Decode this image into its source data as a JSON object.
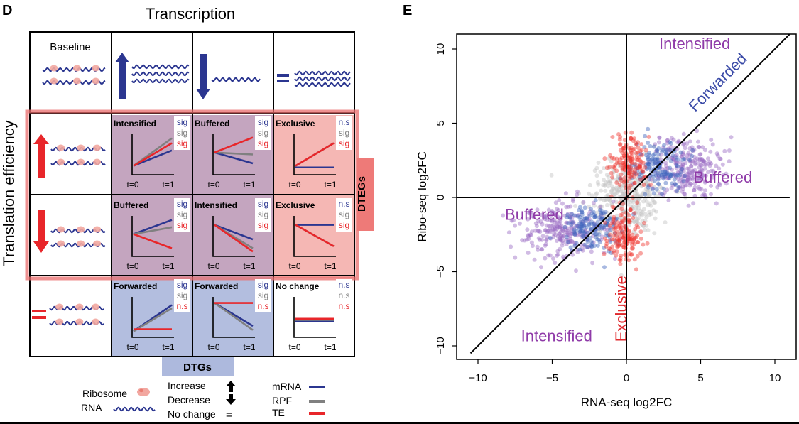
{
  "panel_d": {
    "label": "D",
    "top_title": "Transcription",
    "side_title": "Translation efficiency",
    "baseline_label": "Baseline",
    "dtegs_label": "DTEGs",
    "dtgs_label": "DTGs",
    "t0": "t=0",
    "t1": "t=1",
    "cells": [
      {
        "title": "Intensified",
        "sig": [
          "sig",
          "sig",
          "sig"
        ],
        "lines": {
          "mrna": [
            0.22,
            0.6
          ],
          "rpf": [
            0.22,
            0.9
          ],
          "te": [
            0.22,
            0.78
          ]
        }
      },
      {
        "title": "Buffered",
        "sig": [
          "sig",
          "sig",
          "sig"
        ],
        "lines": {
          "mrna": [
            0.55,
            0.28
          ],
          "rpf": [
            0.55,
            0.5
          ],
          "te": [
            0.55,
            0.92
          ]
        }
      },
      {
        "title": "Exclusive",
        "sig": [
          "n.s",
          "sig",
          "sig"
        ],
        "lines": {
          "mrna": [
            0.18,
            0.18
          ],
          "rpf": [
            0.22,
            0.78
          ],
          "te": [
            0.22,
            0.78
          ]
        }
      },
      {
        "title": "Buffered",
        "sig": [
          "sig",
          "sig",
          "sig"
        ],
        "lines": {
          "mrna": [
            0.55,
            0.9
          ],
          "rpf": [
            0.55,
            0.72
          ],
          "te": [
            0.55,
            0.2
          ]
        }
      },
      {
        "title": "Intensified",
        "sig": [
          "sig",
          "sig",
          "sig"
        ],
        "lines": {
          "mrna": [
            0.78,
            0.42
          ],
          "rpf": [
            0.78,
            0.2
          ],
          "te": [
            0.78,
            0.12
          ]
        }
      },
      {
        "title": "Exclusive",
        "sig": [
          "n.s",
          "sig",
          "sig"
        ],
        "lines": {
          "mrna": [
            0.78,
            0.78
          ],
          "rpf": [
            0.78,
            0.25
          ],
          "te": [
            0.78,
            0.25
          ]
        }
      },
      {
        "title": "Forwarded",
        "sig": [
          "sig",
          "sig",
          "n.s"
        ],
        "lines": {
          "mrna": [
            0.15,
            0.8
          ],
          "rpf": [
            0.15,
            0.72
          ],
          "te": [
            0.2,
            0.2
          ]
        }
      },
      {
        "title": "Forwarded",
        "sig": [
          "sig",
          "sig",
          "n.s"
        ],
        "lines": {
          "mrna": [
            0.85,
            0.28
          ],
          "rpf": [
            0.85,
            0.18
          ],
          "te": [
            0.85,
            0.85
          ]
        }
      },
      {
        "title": "No change",
        "sig": [
          "n.s",
          "n.s",
          "n.s"
        ],
        "lines": {
          "mrna": [
            0.4,
            0.4
          ],
          "rpf": [
            0.43,
            0.43
          ],
          "te": [
            0.46,
            0.46
          ]
        }
      }
    ],
    "legend": {
      "ribosome": "Ribosome",
      "rna": "RNA",
      "increase": "Increase",
      "decrease": "Decrease",
      "no_change": "No change",
      "equals": "=",
      "mrna": "mRNA",
      "rpf": "RPF",
      "te": "TE"
    }
  },
  "colors": {
    "mrna": "#2b3690",
    "rpf": "#808080",
    "te": "#e8262a",
    "purple_cell": "#c4a5bf",
    "red_cell": "#f5b7b4",
    "blue_cell": "#b3bedf",
    "dteg_frame": "#e96c6c",
    "dteg_box": "#ee7a78",
    "dtg_box": "#adb9dd",
    "ribosome": "#f2a7a0",
    "label_purple": "#8f3aa8",
    "label_blue": "#3a4aa7",
    "label_red": "#e02a2e",
    "gray_points": "#c0c0c0",
    "purple_points": "#9a6ac4",
    "blue_points": "#3f63bd",
    "red_points": "#f0352f"
  },
  "panel_e": {
    "label": "E",
    "chart_data": {
      "type": "scatter",
      "xlabel": "RNA-seq log2FC",
      "ylabel": "Ribo-seq log2FC",
      "xlim": [
        -12,
        11
      ],
      "ylim": [
        -11,
        11
      ],
      "xticks": [
        -10,
        -5,
        0,
        5,
        10
      ],
      "yticks": [
        -10,
        -5,
        0,
        5,
        10
      ],
      "reference_lines": {
        "diagonal": {
          "x": [
            -10.5,
            11
          ],
          "y": [
            -10.5,
            11
          ]
        },
        "horizontal": {
          "x": [
            -12,
            11
          ],
          "y": [
            0,
            0
          ]
        },
        "vertical": {
          "x": [
            0,
            0
          ],
          "y": [
            -11,
            11
          ]
        }
      },
      "clusters": [
        {
          "name": "gray",
          "color": "gray_points",
          "center": [
            0,
            0
          ],
          "sd": [
            1.2,
            1.2
          ],
          "count": 320
        },
        {
          "name": "purple",
          "color": "purple_points",
          "center": [
            4.0,
            2.0
          ],
          "sd": [
            1.2,
            1.0
          ],
          "count": 260
        },
        {
          "name": "purple",
          "color": "purple_points",
          "center": [
            -4.3,
            -2.2
          ],
          "sd": [
            1.4,
            1.0
          ],
          "count": 260
        },
        {
          "name": "blue",
          "color": "blue_points",
          "center": [
            2.3,
            2.0
          ],
          "sd": [
            0.9,
            0.8
          ],
          "count": 150
        },
        {
          "name": "blue",
          "color": "blue_points",
          "center": [
            -2.3,
            -2.0
          ],
          "sd": [
            0.9,
            0.8
          ],
          "count": 150
        },
        {
          "name": "red",
          "color": "red_points",
          "center": [
            0.2,
            2.3
          ],
          "sd": [
            0.6,
            0.9
          ],
          "count": 150
        },
        {
          "name": "red",
          "color": "red_points",
          "center": [
            -0.2,
            -2.5
          ],
          "sd": [
            0.6,
            1.0
          ],
          "count": 150
        }
      ],
      "annotations": [
        {
          "text": "Intensified",
          "x": 4.6,
          "y": 10,
          "color": "label_purple"
        },
        {
          "text": "Forwarded",
          "x": 6.4,
          "y": 7.5,
          "color": "label_blue",
          "angle": -45
        },
        {
          "text": "Buffered",
          "x": 6.5,
          "y": 1.0,
          "color": "label_purple"
        },
        {
          "text": "Buffered",
          "x": -6.2,
          "y": -1.5,
          "color": "label_purple"
        },
        {
          "text": "Exclusive",
          "x": 0,
          "y": -7.5,
          "color": "label_red",
          "angle": -90
        },
        {
          "text": "Intensified",
          "x": -4.7,
          "y": -9.7,
          "color": "label_purple"
        }
      ]
    }
  }
}
